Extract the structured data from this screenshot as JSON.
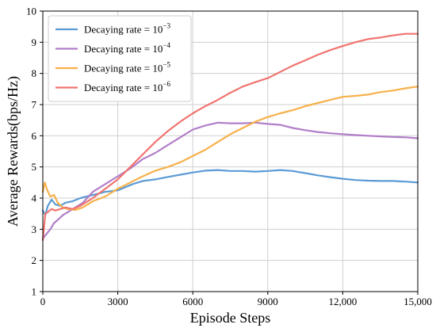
{
  "chart_data": {
    "type": "line",
    "xlabel": "Episode Steps",
    "ylabel": "Average Rewards(bps/Hz)",
    "xlim": [
      0,
      15000
    ],
    "ylim": [
      1,
      10
    ],
    "x_ticks": [
      0,
      3000,
      6000,
      9000,
      12000,
      15000
    ],
    "x_tick_labels": [
      "0",
      "3000",
      "6000",
      "9000",
      "12,000",
      "15,000"
    ],
    "y_ticks": [
      1,
      2,
      3,
      4,
      5,
      6,
      7,
      8,
      9,
      10
    ],
    "y_tick_labels": [
      "1",
      "2",
      "3",
      "4",
      "5",
      "6",
      "7",
      "8",
      "9",
      "10"
    ],
    "grid": true,
    "legend_position": "top-left",
    "series": [
      {
        "name_base": "Decaying rate = 10",
        "name_exp": "−3",
        "color": "#5b9bd5",
        "points": [
          [
            0,
            3.6
          ],
          [
            100,
            3.45
          ],
          [
            200,
            3.75
          ],
          [
            350,
            3.95
          ],
          [
            500,
            3.8
          ],
          [
            700,
            3.75
          ],
          [
            900,
            3.85
          ],
          [
            1200,
            3.9
          ],
          [
            1500,
            4.0
          ],
          [
            2000,
            4.1
          ],
          [
            2500,
            4.2
          ],
          [
            3000,
            4.25
          ],
          [
            3300,
            4.35
          ],
          [
            3600,
            4.45
          ],
          [
            4000,
            4.55
          ],
          [
            4500,
            4.6
          ],
          [
            5000,
            4.68
          ],
          [
            5500,
            4.75
          ],
          [
            6000,
            4.82
          ],
          [
            6500,
            4.88
          ],
          [
            7000,
            4.9
          ],
          [
            7500,
            4.87
          ],
          [
            8000,
            4.87
          ],
          [
            8500,
            4.85
          ],
          [
            9000,
            4.87
          ],
          [
            9500,
            4.9
          ],
          [
            10000,
            4.87
          ],
          [
            10500,
            4.8
          ],
          [
            11000,
            4.73
          ],
          [
            11500,
            4.67
          ],
          [
            12000,
            4.62
          ],
          [
            12500,
            4.58
          ],
          [
            13000,
            4.56
          ],
          [
            13500,
            4.55
          ],
          [
            14000,
            4.55
          ],
          [
            14500,
            4.53
          ],
          [
            15000,
            4.5
          ]
        ]
      },
      {
        "name_base": "Decaying rate = 10",
        "name_exp": "−4",
        "color": "#b17ec9",
        "points": [
          [
            0,
            2.7
          ],
          [
            150,
            2.85
          ],
          [
            300,
            3.0
          ],
          [
            450,
            3.2
          ],
          [
            600,
            3.3
          ],
          [
            800,
            3.45
          ],
          [
            1000,
            3.55
          ],
          [
            1300,
            3.7
          ],
          [
            1600,
            3.85
          ],
          [
            2000,
            4.2
          ],
          [
            2500,
            4.45
          ],
          [
            3000,
            4.7
          ],
          [
            3500,
            4.95
          ],
          [
            4000,
            5.25
          ],
          [
            4500,
            5.45
          ],
          [
            5000,
            5.7
          ],
          [
            5500,
            5.95
          ],
          [
            6000,
            6.2
          ],
          [
            6500,
            6.33
          ],
          [
            7000,
            6.42
          ],
          [
            7500,
            6.4
          ],
          [
            8000,
            6.4
          ],
          [
            8500,
            6.42
          ],
          [
            9000,
            6.38
          ],
          [
            9500,
            6.35
          ],
          [
            10000,
            6.25
          ],
          [
            10500,
            6.18
          ],
          [
            11000,
            6.12
          ],
          [
            11500,
            6.08
          ],
          [
            12000,
            6.05
          ],
          [
            12500,
            6.02
          ],
          [
            13000,
            6.0
          ],
          [
            13500,
            5.98
          ],
          [
            14000,
            5.96
          ],
          [
            14500,
            5.95
          ],
          [
            15000,
            5.92
          ]
        ]
      },
      {
        "name_base": "Decaying rate = 10",
        "name_exp": "−5",
        "color": "#f7b04a",
        "points": [
          [
            0,
            4.2
          ],
          [
            80,
            4.5
          ],
          [
            180,
            4.25
          ],
          [
            300,
            4.05
          ],
          [
            450,
            4.1
          ],
          [
            600,
            3.85
          ],
          [
            800,
            3.7
          ],
          [
            1000,
            3.65
          ],
          [
            1300,
            3.62
          ],
          [
            1600,
            3.7
          ],
          [
            2000,
            3.9
          ],
          [
            2500,
            4.05
          ],
          [
            3000,
            4.3
          ],
          [
            3500,
            4.5
          ],
          [
            4000,
            4.7
          ],
          [
            4500,
            4.88
          ],
          [
            5000,
            5.0
          ],
          [
            5500,
            5.15
          ],
          [
            6000,
            5.35
          ],
          [
            6500,
            5.55
          ],
          [
            7000,
            5.8
          ],
          [
            7500,
            6.05
          ],
          [
            8000,
            6.25
          ],
          [
            8500,
            6.45
          ],
          [
            9000,
            6.6
          ],
          [
            9500,
            6.72
          ],
          [
            10000,
            6.82
          ],
          [
            10500,
            6.95
          ],
          [
            11000,
            7.05
          ],
          [
            11500,
            7.15
          ],
          [
            12000,
            7.25
          ],
          [
            12500,
            7.28
          ],
          [
            13000,
            7.32
          ],
          [
            13500,
            7.4
          ],
          [
            14000,
            7.45
          ],
          [
            14500,
            7.52
          ],
          [
            15000,
            7.58
          ]
        ]
      },
      {
        "name_base": "Decaying rate = 10",
        "name_exp": "−6",
        "color": "#f07470",
        "points": [
          [
            0,
            2.65
          ],
          [
            100,
            3.5
          ],
          [
            200,
            3.55
          ],
          [
            350,
            3.65
          ],
          [
            500,
            3.6
          ],
          [
            700,
            3.65
          ],
          [
            900,
            3.7
          ],
          [
            1200,
            3.65
          ],
          [
            1500,
            3.75
          ],
          [
            2000,
            4.0
          ],
          [
            2500,
            4.3
          ],
          [
            3000,
            4.6
          ],
          [
            3500,
            5.0
          ],
          [
            4000,
            5.4
          ],
          [
            4500,
            5.8
          ],
          [
            5000,
            6.15
          ],
          [
            5500,
            6.45
          ],
          [
            6000,
            6.72
          ],
          [
            6500,
            6.95
          ],
          [
            7000,
            7.15
          ],
          [
            7500,
            7.38
          ],
          [
            8000,
            7.58
          ],
          [
            8500,
            7.72
          ],
          [
            9000,
            7.85
          ],
          [
            9500,
            8.05
          ],
          [
            10000,
            8.25
          ],
          [
            10500,
            8.42
          ],
          [
            11000,
            8.6
          ],
          [
            11500,
            8.75
          ],
          [
            12000,
            8.88
          ],
          [
            12500,
            9.0
          ],
          [
            13000,
            9.1
          ],
          [
            13500,
            9.15
          ],
          [
            14000,
            9.22
          ],
          [
            14500,
            9.27
          ],
          [
            15000,
            9.27
          ]
        ]
      }
    ]
  }
}
